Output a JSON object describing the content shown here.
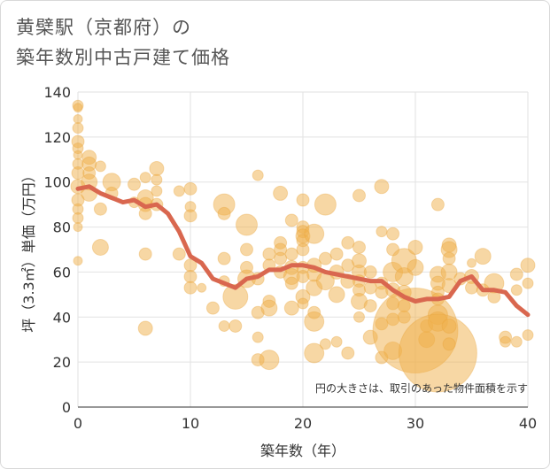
{
  "chart_data": {
    "type": "scatter",
    "title_lines": [
      "黄檗駅（京都府）の",
      "築年数別中古戸建て価格"
    ],
    "xlabel": "築年数（年）",
    "ylabel": "坪（3.3㎡）単価（万円）",
    "xlim": [
      0,
      40
    ],
    "ylim": [
      0,
      140
    ],
    "x_ticks": [
      0,
      10,
      20,
      30,
      40
    ],
    "y_ticks": [
      0,
      20,
      40,
      60,
      80,
      100,
      120,
      140
    ],
    "grid": true,
    "note": "円の大きさは、取引のあった物件面積を示す",
    "colors": {
      "bubble": "#f0b04a",
      "line": "#d9674f",
      "grid": "#e2e2e2",
      "background": "#ffffff"
    },
    "trend_line": {
      "name": "",
      "x": [
        0,
        1,
        2,
        3,
        4,
        5,
        6,
        7,
        8,
        9,
        10,
        11,
        12,
        13,
        14,
        15,
        16,
        17,
        18,
        19,
        20,
        21,
        22,
        23,
        24,
        25,
        26,
        27,
        28,
        29,
        30,
        31,
        32,
        33,
        34,
        35,
        36,
        37,
        38,
        39,
        40
      ],
      "y": [
        97,
        98,
        95,
        93,
        91,
        92,
        89,
        90,
        86,
        78,
        67,
        64,
        57,
        55,
        53,
        57,
        58,
        61,
        61,
        63,
        63,
        62,
        60,
        59,
        58,
        57,
        56,
        56,
        52,
        49,
        47,
        48,
        48,
        49,
        56,
        58,
        52,
        52,
        51,
        45,
        41
      ]
    },
    "bubbles": [
      {
        "x": 0,
        "y": 134,
        "s": 6
      },
      {
        "x": 0,
        "y": 133,
        "s": 5
      },
      {
        "x": 0,
        "y": 128,
        "s": 5
      },
      {
        "x": 0,
        "y": 124,
        "s": 6
      },
      {
        "x": 0,
        "y": 118,
        "s": 7
      },
      {
        "x": 0,
        "y": 115,
        "s": 6
      },
      {
        "x": 0,
        "y": 112,
        "s": 5
      },
      {
        "x": 0,
        "y": 108,
        "s": 6
      },
      {
        "x": 0,
        "y": 104,
        "s": 7
      },
      {
        "x": 0,
        "y": 98,
        "s": 8
      },
      {
        "x": 0,
        "y": 92,
        "s": 7
      },
      {
        "x": 0,
        "y": 88,
        "s": 6
      },
      {
        "x": 0,
        "y": 84,
        "s": 6
      },
      {
        "x": 0,
        "y": 80,
        "s": 5
      },
      {
        "x": 0,
        "y": 65,
        "s": 5
      },
      {
        "x": 1,
        "y": 111,
        "s": 8
      },
      {
        "x": 1,
        "y": 108,
        "s": 8
      },
      {
        "x": 1,
        "y": 104,
        "s": 7
      },
      {
        "x": 1,
        "y": 100,
        "s": 9
      },
      {
        "x": 1,
        "y": 95,
        "s": 9
      },
      {
        "x": 2,
        "y": 107,
        "s": 6
      },
      {
        "x": 2,
        "y": 88,
        "s": 7
      },
      {
        "x": 2,
        "y": 71,
        "s": 9
      },
      {
        "x": 3,
        "y": 100,
        "s": 10
      },
      {
        "x": 3,
        "y": 95,
        "s": 7
      },
      {
        "x": 5,
        "y": 99,
        "s": 7
      },
      {
        "x": 5,
        "y": 91,
        "s": 6
      },
      {
        "x": 6,
        "y": 102,
        "s": 6
      },
      {
        "x": 6,
        "y": 93,
        "s": 9
      },
      {
        "x": 6,
        "y": 90,
        "s": 8
      },
      {
        "x": 6,
        "y": 86,
        "s": 7
      },
      {
        "x": 6,
        "y": 68,
        "s": 7
      },
      {
        "x": 6,
        "y": 35,
        "s": 8
      },
      {
        "x": 7,
        "y": 106,
        "s": 8
      },
      {
        "x": 7,
        "y": 101,
        "s": 6
      },
      {
        "x": 7,
        "y": 96,
        "s": 6
      },
      {
        "x": 7,
        "y": 90,
        "s": 7
      },
      {
        "x": 9,
        "y": 96,
        "s": 6
      },
      {
        "x": 9,
        "y": 68,
        "s": 7
      },
      {
        "x": 10,
        "y": 97,
        "s": 7
      },
      {
        "x": 10,
        "y": 89,
        "s": 6
      },
      {
        "x": 10,
        "y": 85,
        "s": 7
      },
      {
        "x": 10,
        "y": 63,
        "s": 7
      },
      {
        "x": 10,
        "y": 58,
        "s": 7
      },
      {
        "x": 10,
        "y": 53,
        "s": 7
      },
      {
        "x": 11,
        "y": 53,
        "s": 5
      },
      {
        "x": 12,
        "y": 44,
        "s": 7
      },
      {
        "x": 13,
        "y": 90,
        "s": 12
      },
      {
        "x": 13,
        "y": 86,
        "s": 7
      },
      {
        "x": 13,
        "y": 66,
        "s": 7
      },
      {
        "x": 13,
        "y": 56,
        "s": 6
      },
      {
        "x": 13,
        "y": 36,
        "s": 6
      },
      {
        "x": 14,
        "y": 49,
        "s": 14
      },
      {
        "x": 14,
        "y": 36,
        "s": 7
      },
      {
        "x": 15,
        "y": 81,
        "s": 12
      },
      {
        "x": 15,
        "y": 70,
        "s": 7
      },
      {
        "x": 15,
        "y": 62,
        "s": 7
      },
      {
        "x": 15,
        "y": 57,
        "s": 10
      },
      {
        "x": 16,
        "y": 103,
        "s": 6
      },
      {
        "x": 16,
        "y": 57,
        "s": 7
      },
      {
        "x": 16,
        "y": 42,
        "s": 7
      },
      {
        "x": 16,
        "y": 31,
        "s": 6
      },
      {
        "x": 16,
        "y": 21,
        "s": 7
      },
      {
        "x": 17,
        "y": 68,
        "s": 7
      },
      {
        "x": 17,
        "y": 63,
        "s": 7
      },
      {
        "x": 17,
        "y": 47,
        "s": 7
      },
      {
        "x": 17,
        "y": 44,
        "s": 9
      },
      {
        "x": 17,
        "y": 21,
        "s": 11
      },
      {
        "x": 18,
        "y": 95,
        "s": 8
      },
      {
        "x": 18,
        "y": 73,
        "s": 7
      },
      {
        "x": 18,
        "y": 70,
        "s": 7
      },
      {
        "x": 18,
        "y": 66,
        "s": 7
      },
      {
        "x": 18,
        "y": 60,
        "s": 7
      },
      {
        "x": 19,
        "y": 83,
        "s": 7
      },
      {
        "x": 19,
        "y": 68,
        "s": 7
      },
      {
        "x": 19,
        "y": 62,
        "s": 8
      },
      {
        "x": 19,
        "y": 58,
        "s": 9
      },
      {
        "x": 19,
        "y": 55,
        "s": 7
      },
      {
        "x": 19,
        "y": 44,
        "s": 8
      },
      {
        "x": 20,
        "y": 92,
        "s": 7
      },
      {
        "x": 20,
        "y": 80,
        "s": 7
      },
      {
        "x": 20,
        "y": 78,
        "s": 7
      },
      {
        "x": 20,
        "y": 76,
        "s": 8
      },
      {
        "x": 20,
        "y": 74,
        "s": 7
      },
      {
        "x": 20,
        "y": 70,
        "s": 7
      },
      {
        "x": 20,
        "y": 62,
        "s": 7
      },
      {
        "x": 20,
        "y": 58,
        "s": 7
      },
      {
        "x": 20,
        "y": 49,
        "s": 8
      },
      {
        "x": 20,
        "y": 46,
        "s": 6
      },
      {
        "x": 21,
        "y": 77,
        "s": 11
      },
      {
        "x": 21,
        "y": 63,
        "s": 8
      },
      {
        "x": 21,
        "y": 59,
        "s": 8
      },
      {
        "x": 21,
        "y": 53,
        "s": 9
      },
      {
        "x": 21,
        "y": 42,
        "s": 7
      },
      {
        "x": 21,
        "y": 38,
        "s": 11
      },
      {
        "x": 21,
        "y": 24,
        "s": 11
      },
      {
        "x": 22,
        "y": 90,
        "s": 12
      },
      {
        "x": 22,
        "y": 66,
        "s": 7
      },
      {
        "x": 22,
        "y": 56,
        "s": 10
      },
      {
        "x": 22,
        "y": 28,
        "s": 6
      },
      {
        "x": 23,
        "y": 68,
        "s": 7
      },
      {
        "x": 23,
        "y": 60,
        "s": 8
      },
      {
        "x": 23,
        "y": 50,
        "s": 9
      },
      {
        "x": 23,
        "y": 29,
        "s": 6
      },
      {
        "x": 24,
        "y": 73,
        "s": 7
      },
      {
        "x": 24,
        "y": 63,
        "s": 7
      },
      {
        "x": 24,
        "y": 56,
        "s": 8
      },
      {
        "x": 24,
        "y": 24,
        "s": 7
      },
      {
        "x": 25,
        "y": 94,
        "s": 7
      },
      {
        "x": 25,
        "y": 71,
        "s": 7
      },
      {
        "x": 25,
        "y": 65,
        "s": 8
      },
      {
        "x": 25,
        "y": 60,
        "s": 8
      },
      {
        "x": 25,
        "y": 56,
        "s": 7
      },
      {
        "x": 25,
        "y": 52,
        "s": 7
      },
      {
        "x": 25,
        "y": 47,
        "s": 9
      },
      {
        "x": 25,
        "y": 40,
        "s": 6
      },
      {
        "x": 26,
        "y": 60,
        "s": 7
      },
      {
        "x": 26,
        "y": 53,
        "s": 7
      },
      {
        "x": 26,
        "y": 45,
        "s": 7
      },
      {
        "x": 26,
        "y": 31,
        "s": 8
      },
      {
        "x": 27,
        "y": 98,
        "s": 8
      },
      {
        "x": 27,
        "y": 78,
        "s": 6
      },
      {
        "x": 27,
        "y": 55,
        "s": 7
      },
      {
        "x": 27,
        "y": 51,
        "s": 7
      },
      {
        "x": 27,
        "y": 37,
        "s": 7
      },
      {
        "x": 27,
        "y": 22,
        "s": 7
      },
      {
        "x": 28,
        "y": 77,
        "s": 7
      },
      {
        "x": 28,
        "y": 70,
        "s": 7
      },
      {
        "x": 28,
        "y": 60,
        "s": 11
      },
      {
        "x": 28,
        "y": 52,
        "s": 8
      },
      {
        "x": 28,
        "y": 46,
        "s": 7
      },
      {
        "x": 28,
        "y": 39,
        "s": 7
      },
      {
        "x": 28,
        "y": 25,
        "s": 10
      },
      {
        "x": 29,
        "y": 65,
        "s": 14
      },
      {
        "x": 29,
        "y": 58,
        "s": 10
      },
      {
        "x": 29,
        "y": 51,
        "s": 8
      },
      {
        "x": 29,
        "y": 45,
        "s": 7
      },
      {
        "x": 29,
        "y": 40,
        "s": 7
      },
      {
        "x": 30,
        "y": 71,
        "s": 8
      },
      {
        "x": 30,
        "y": 62,
        "s": 9
      },
      {
        "x": 30,
        "y": 34,
        "s": 48
      },
      {
        "x": 31,
        "y": 36,
        "s": 7
      },
      {
        "x": 31,
        "y": 30,
        "s": 9
      },
      {
        "x": 32,
        "y": 90,
        "s": 7
      },
      {
        "x": 32,
        "y": 59,
        "s": 9
      },
      {
        "x": 32,
        "y": 55,
        "s": 8
      },
      {
        "x": 32,
        "y": 51,
        "s": 7
      },
      {
        "x": 32,
        "y": 48,
        "s": 7
      },
      {
        "x": 32,
        "y": 41,
        "s": 11
      },
      {
        "x": 32,
        "y": 38,
        "s": 11
      },
      {
        "x": 32,
        "y": 24,
        "s": 44
      },
      {
        "x": 33,
        "y": 72,
        "s": 8
      },
      {
        "x": 33,
        "y": 70,
        "s": 9
      },
      {
        "x": 33,
        "y": 66,
        "s": 7
      },
      {
        "x": 33,
        "y": 60,
        "s": 9
      },
      {
        "x": 33,
        "y": 54,
        "s": 8
      },
      {
        "x": 33,
        "y": 36,
        "s": 8
      },
      {
        "x": 33,
        "y": 28,
        "s": 7
      },
      {
        "x": 34,
        "y": 57,
        "s": 7
      },
      {
        "x": 35,
        "y": 64,
        "s": 5
      },
      {
        "x": 35,
        "y": 58,
        "s": 8
      },
      {
        "x": 35,
        "y": 53,
        "s": 7
      },
      {
        "x": 36,
        "y": 67,
        "s": 9
      },
      {
        "x": 36,
        "y": 52,
        "s": 7
      },
      {
        "x": 37,
        "y": 55,
        "s": 11
      },
      {
        "x": 37,
        "y": 49,
        "s": 7
      },
      {
        "x": 38,
        "y": 31,
        "s": 7
      },
      {
        "x": 38,
        "y": 29,
        "s": 6
      },
      {
        "x": 39,
        "y": 59,
        "s": 7
      },
      {
        "x": 39,
        "y": 52,
        "s": 6
      },
      {
        "x": 39,
        "y": 29,
        "s": 6
      },
      {
        "x": 40,
        "y": 63,
        "s": 8
      },
      {
        "x": 40,
        "y": 55,
        "s": 6
      },
      {
        "x": 40,
        "y": 32,
        "s": 6
      }
    ]
  }
}
